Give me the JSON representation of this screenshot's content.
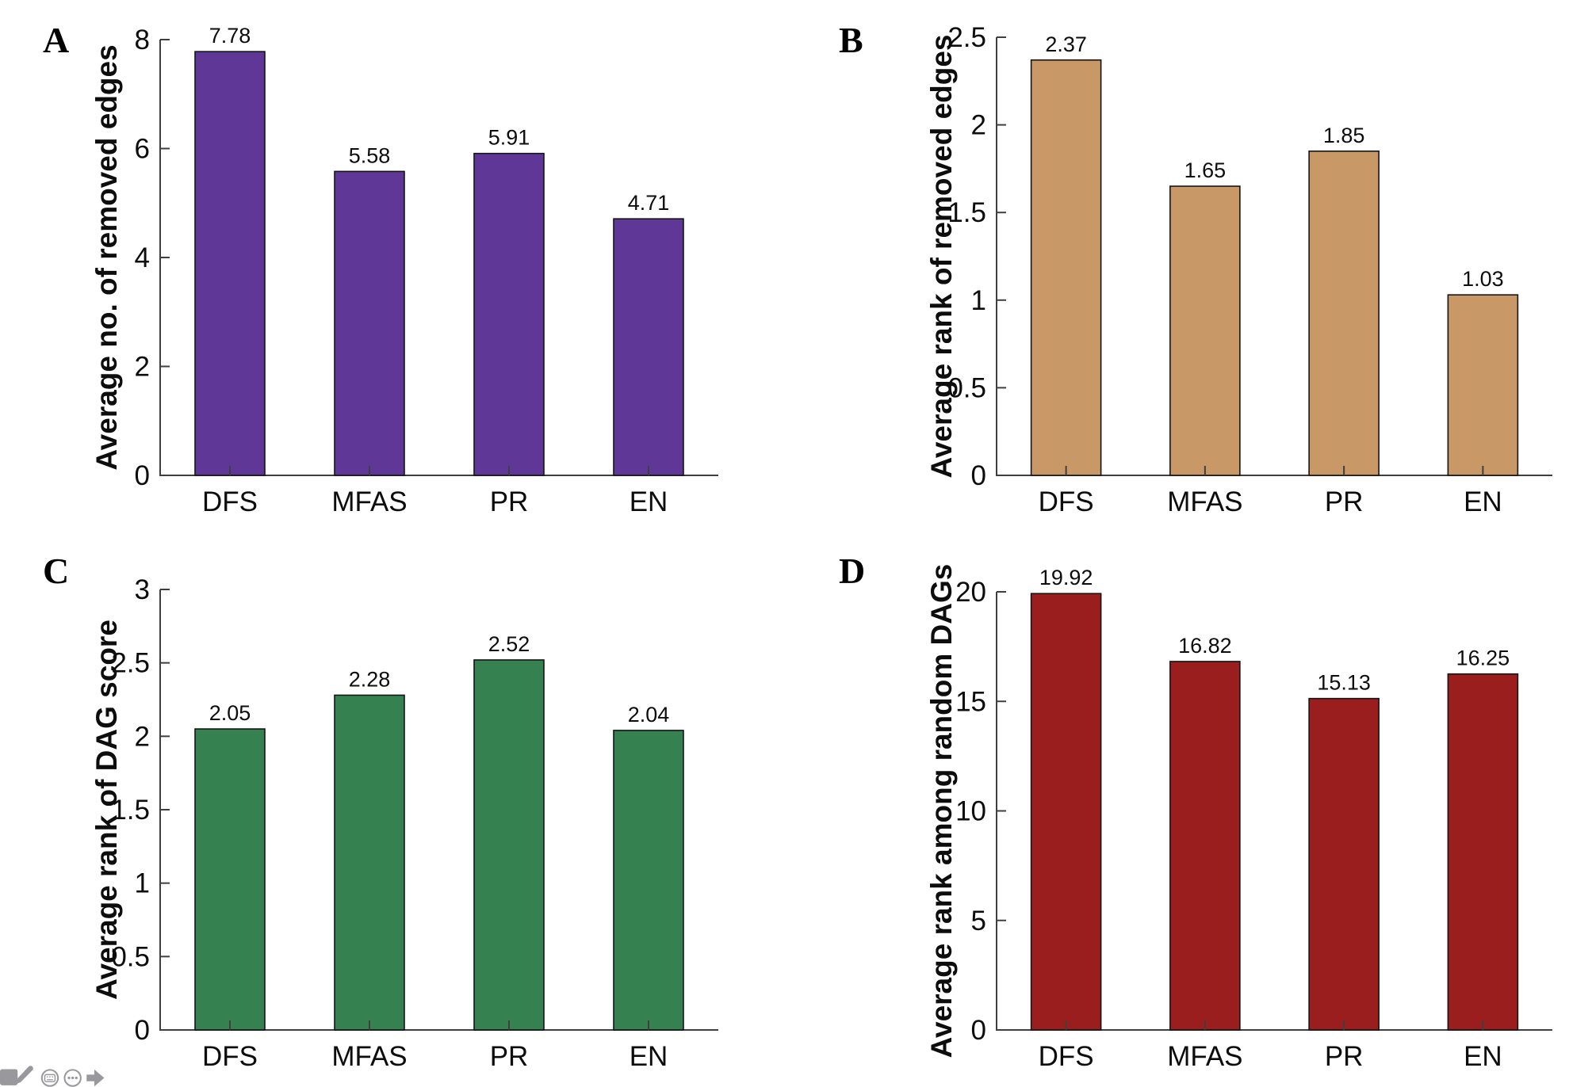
{
  "figure": {
    "background": "#ffffff",
    "axis_color": "#3f3f3f",
    "panel_letters": [
      "A",
      "B",
      "C",
      "D"
    ]
  },
  "chart_data": [
    {
      "panel_label": "A",
      "type": "bar",
      "title": "",
      "xlabel": "",
      "ylabel": "Average no. of removed edges",
      "categories": [
        "DFS",
        "MFAS",
        "PR",
        "EN"
      ],
      "values": [
        7.78,
        5.58,
        5.91,
        4.71
      ],
      "value_labels": [
        "7.78",
        "5.58",
        "5.91",
        "4.71"
      ],
      "yticks": [
        0,
        2,
        4,
        6,
        8
      ],
      "ytick_labels": [
        "0",
        "2",
        "4",
        "6",
        "8"
      ],
      "ylim": [
        0,
        8
      ],
      "grid": false,
      "legend": "none",
      "bar_color": "#5e3797",
      "bar_edge": "#151515"
    },
    {
      "panel_label": "B",
      "type": "bar",
      "title": "",
      "xlabel": "",
      "ylabel": "Average rank of removed edges",
      "categories": [
        "DFS",
        "MFAS",
        "PR",
        "EN"
      ],
      "values": [
        2.37,
        1.65,
        1.85,
        1.03
      ],
      "value_labels": [
        "2.37",
        "1.65",
        "1.85",
        "1.03"
      ],
      "yticks": [
        0,
        0.5,
        1,
        1.5,
        2,
        2.5
      ],
      "ytick_labels": [
        "0",
        "0.5",
        "1",
        "1.5",
        "2",
        "2.5"
      ],
      "ylim": [
        0,
        2.5
      ],
      "grid": false,
      "legend": "none",
      "bar_color": "#c99867",
      "bar_edge": "#151515"
    },
    {
      "panel_label": "C",
      "type": "bar",
      "title": "",
      "xlabel": "",
      "ylabel": "Average rank of DAG score",
      "categories": [
        "DFS",
        "MFAS",
        "PR",
        "EN"
      ],
      "values": [
        2.05,
        2.28,
        2.52,
        2.04
      ],
      "value_labels": [
        "2.05",
        "2.28",
        "2.52",
        "2.04"
      ],
      "yticks": [
        0,
        0.5,
        1,
        1.5,
        2,
        2.5,
        3
      ],
      "ytick_labels": [
        "0",
        "0.5",
        "1",
        "1.5",
        "2",
        "2.5",
        "3"
      ],
      "ylim": [
        0,
        3
      ],
      "grid": false,
      "legend": "none",
      "bar_color": "#35814f",
      "bar_edge": "#151515"
    },
    {
      "panel_label": "D",
      "type": "bar",
      "title": "",
      "xlabel": "",
      "ylabel": "Average rank among random DAGs",
      "categories": [
        "DFS",
        "MFAS",
        "PR",
        "EN"
      ],
      "values": [
        19.92,
        16.82,
        15.13,
        16.25
      ],
      "value_labels": [
        "19.92",
        "16.82",
        "15.13",
        "16.25"
      ],
      "yticks": [
        0,
        5,
        10,
        15,
        20
      ],
      "ytick_labels": [
        "0",
        "5",
        "10",
        "15",
        "20"
      ],
      "ylim": [
        0,
        20
      ],
      "grid": false,
      "legend": "none",
      "bar_color": "#9b1e1e",
      "bar_edge": "#151515"
    }
  ],
  "toolbar": {
    "icon_color": "#98989d",
    "icons": [
      "clipped-box-icon",
      "pencil-icon",
      "keyboard-circle-icon",
      "more-options-icon",
      "forward-arrow-icon"
    ]
  }
}
